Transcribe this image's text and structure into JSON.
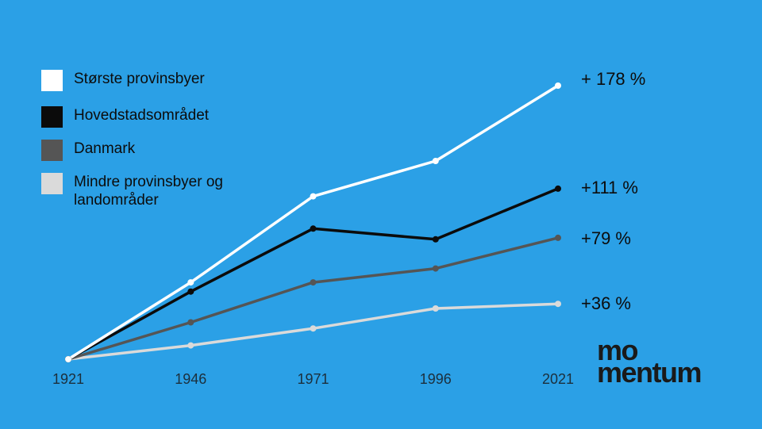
{
  "colors": {
    "background": "#2ba0e6",
    "storste_provinsbyer": "#ffffff",
    "hovedstadsomradet": "#0b0b0b",
    "danmark": "#555555",
    "mindre_provinsbyer": "#dadada"
  },
  "logo": {
    "line1": "mo",
    "line2": "mentum"
  },
  "chart_data": {
    "type": "line",
    "x": [
      1921,
      1946,
      1971,
      1996,
      2021
    ],
    "x_tick_labels": [
      "1921",
      "1946",
      "1971",
      "1996",
      "2021"
    ],
    "ylim": [
      0,
      185
    ],
    "grid": false,
    "legend_position": "top-left",
    "series": [
      {
        "name": "Største provinsbyer",
        "values": [
          0,
          50,
          106,
          129,
          178
        ],
        "end_label": "+ 178 %",
        "color": "#ffffff"
      },
      {
        "name": "Hovedstadsområdet",
        "values": [
          0,
          44,
          85,
          78,
          111
        ],
        "end_label": "+111 %",
        "color": "#0b0b0b"
      },
      {
        "name": "Danmark",
        "values": [
          0,
          24,
          50,
          59,
          79
        ],
        "end_label": "+79 %",
        "color": "#555555"
      },
      {
        "name": "Mindre provinsbyer og landområder",
        "values": [
          0,
          9,
          20,
          33,
          36
        ],
        "end_label": "+36 %",
        "color": "#dadada"
      }
    ]
  }
}
